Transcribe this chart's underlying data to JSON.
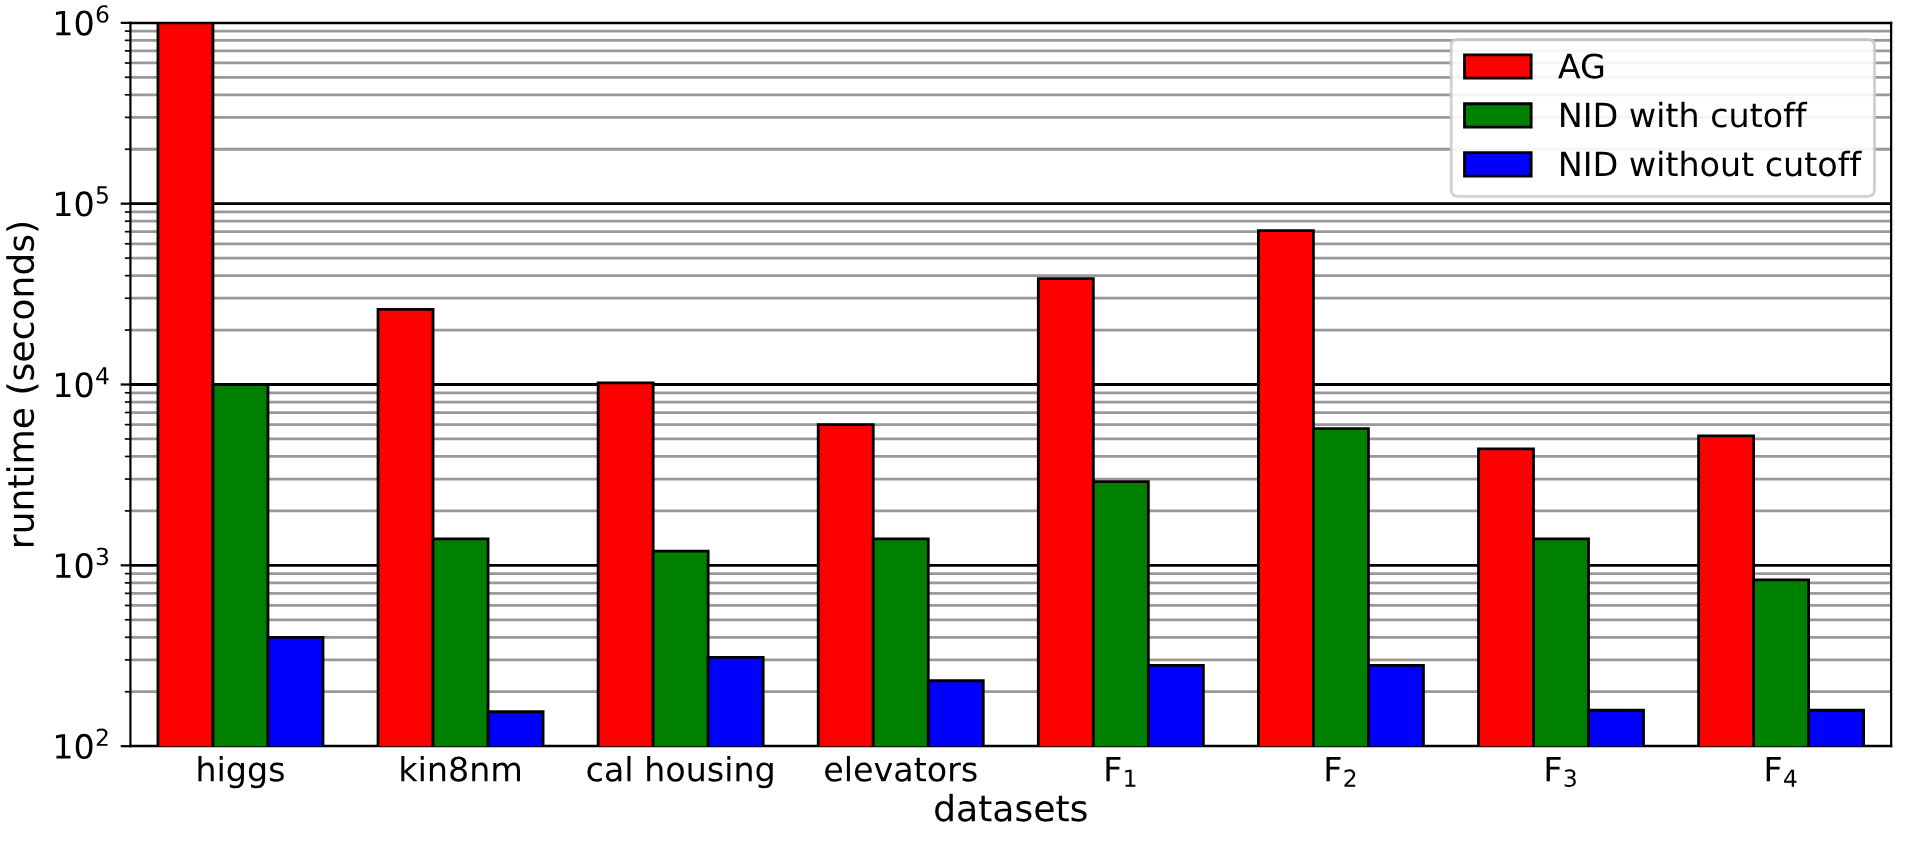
{
  "chart_data": {
    "type": "bar",
    "xlabel": "datasets",
    "ylabel": "runtime (seconds)",
    "categories": [
      "higgs",
      "kin8nm",
      "cal housing",
      "elevators",
      "F$_{1}$",
      "F$_{2}$",
      "F$_{3}$",
      "F$_{4}$"
    ],
    "series": [
      {
        "name": "AG",
        "color": "#ff0000",
        "values": [
          1000000,
          26000,
          10200,
          6000,
          38500,
          71000,
          4400,
          5200
        ]
      },
      {
        "name": "NID with cutoff",
        "color": "#008000",
        "values": [
          10000,
          1400,
          1200,
          1400,
          2900,
          5700,
          1400,
          830
        ]
      },
      {
        "name": "NID without cutoff",
        "color": "#0000ff",
        "values": [
          400,
          155,
          310,
          230,
          280,
          280,
          158,
          158
        ]
      }
    ],
    "log": "y",
    "ylim": [
      100,
      1000000
    ],
    "yticks": [
      {
        "value": 100,
        "label": "10$^{2}$"
      },
      {
        "value": 1000,
        "label": "10$^{3}$"
      },
      {
        "value": 10000,
        "label": "10$^{4}$"
      },
      {
        "value": 100000,
        "label": "10$^{5}$"
      },
      {
        "value": 1000000,
        "label": "10$^{6}$"
      }
    ],
    "grid": "y",
    "legend": "top right"
  }
}
